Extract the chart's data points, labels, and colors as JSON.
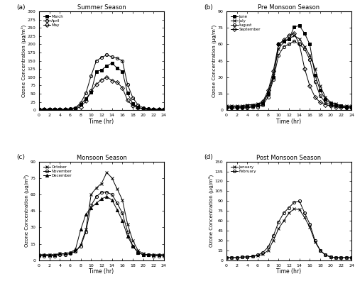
{
  "subplot_a": {
    "title": "Summer Season",
    "label": "(a)",
    "ylim": [
      0,
      300
    ],
    "yticks": [
      0,
      25,
      50,
      75,
      100,
      125,
      150,
      175,
      200,
      225,
      250,
      275,
      300
    ],
    "ylabel": "Ozone Concentration (µg/m³)",
    "xlabel": "Time (hr)",
    "series": {
      "March": {
        "marker": "s",
        "fillstyle": "full",
        "x": [
          0,
          1,
          2,
          3,
          4,
          5,
          6,
          7,
          8,
          9,
          10,
          11,
          12,
          13,
          14,
          15,
          16,
          17,
          18,
          19,
          20,
          21,
          22,
          23,
          24
        ],
        "y": [
          2,
          2,
          2,
          2,
          2,
          2,
          3,
          5,
          18,
          35,
          55,
          118,
          122,
          135,
          143,
          128,
          118,
          52,
          20,
          9,
          5,
          3,
          2,
          2,
          2
        ]
      },
      "April": {
        "marker": "o",
        "fillstyle": "none",
        "x": [
          0,
          1,
          2,
          3,
          4,
          5,
          6,
          7,
          8,
          9,
          10,
          11,
          12,
          13,
          14,
          15,
          16,
          17,
          18,
          19,
          20,
          21,
          22,
          23,
          24
        ],
        "y": [
          3,
          3,
          3,
          3,
          3,
          3,
          5,
          8,
          22,
          52,
          105,
          150,
          160,
          168,
          162,
          158,
          150,
          78,
          38,
          16,
          7,
          5,
          3,
          3,
          3
        ]
      },
      "May": {
        "marker": "D",
        "fillstyle": "none",
        "x": [
          0,
          1,
          2,
          3,
          4,
          5,
          6,
          7,
          8,
          9,
          10,
          11,
          12,
          13,
          14,
          15,
          16,
          17,
          18,
          19,
          20,
          21,
          22,
          23,
          24
        ],
        "y": [
          2,
          2,
          2,
          2,
          2,
          2,
          3,
          5,
          10,
          28,
          58,
          78,
          92,
          100,
          90,
          85,
          68,
          30,
          13,
          7,
          4,
          3,
          2,
          2,
          2
        ]
      }
    }
  },
  "subplot_b": {
    "title": "Pre Monsoon Season",
    "label": "(b)",
    "ylim": [
      0,
      90
    ],
    "yticks": [
      0,
      15,
      30,
      45,
      60,
      75,
      90
    ],
    "ylabel": "Ozone Concentration (µg/m³)",
    "xlabel": "Time (hr)",
    "series": {
      "June": {
        "marker": "s",
        "fillstyle": "full",
        "x": [
          0,
          1,
          2,
          3,
          4,
          5,
          6,
          7,
          8,
          9,
          10,
          11,
          12,
          13,
          14,
          15,
          16,
          17,
          18,
          19,
          20,
          21,
          22,
          23,
          24
        ],
        "y": [
          3,
          3,
          3,
          3,
          4,
          4,
          5,
          6,
          15,
          30,
          60,
          63,
          65,
          76,
          77,
          70,
          60,
          32,
          18,
          10,
          6,
          5,
          4,
          3,
          3
        ]
      },
      "July": {
        "marker": "x",
        "fillstyle": "full",
        "x": [
          0,
          1,
          2,
          3,
          4,
          5,
          6,
          7,
          8,
          9,
          10,
          11,
          12,
          13,
          14,
          15,
          16,
          17,
          18,
          19,
          20,
          21,
          22,
          23,
          24
        ],
        "y": [
          4,
          4,
          4,
          4,
          5,
          5,
          6,
          7,
          16,
          32,
          56,
          62,
          65,
          68,
          65,
          58,
          50,
          38,
          22,
          12,
          7,
          6,
          4,
          4,
          4
        ]
      },
      "August": {
        "marker": "o",
        "fillstyle": "none",
        "x": [
          0,
          1,
          2,
          3,
          4,
          5,
          6,
          7,
          8,
          9,
          10,
          11,
          12,
          13,
          14,
          15,
          16,
          17,
          18,
          19,
          20,
          21,
          22,
          23,
          24
        ],
        "y": [
          2,
          2,
          2,
          2,
          2,
          3,
          3,
          5,
          12,
          28,
          50,
          58,
          60,
          63,
          60,
          56,
          46,
          26,
          13,
          7,
          5,
          4,
          3,
          2,
          2
        ]
      },
      "September": {
        "marker": "D",
        "fillstyle": "none",
        "x": [
          0,
          1,
          2,
          3,
          4,
          5,
          6,
          7,
          8,
          9,
          10,
          11,
          12,
          13,
          14,
          15,
          16,
          17,
          18,
          19,
          20,
          21,
          22,
          23,
          24
        ],
        "y": [
          3,
          3,
          3,
          3,
          3,
          4,
          5,
          8,
          18,
          36,
          60,
          64,
          68,
          70,
          60,
          38,
          22,
          12,
          7,
          5,
          4,
          3,
          3,
          3,
          3
        ]
      }
    }
  },
  "subplot_c": {
    "title": "Monsoon Season",
    "label": "(c)",
    "ylim": [
      0,
      90
    ],
    "yticks": [
      0,
      15,
      30,
      45,
      60,
      75,
      90
    ],
    "ylabel": "Ozone Concentration (µg/m³)",
    "xlabel": "Time (hr)",
    "series": {
      "October": {
        "marker": "x",
        "fillstyle": "full",
        "x": [
          0,
          1,
          2,
          3,
          4,
          5,
          6,
          7,
          8,
          9,
          10,
          11,
          12,
          13,
          14,
          15,
          16,
          17,
          18,
          19,
          20,
          21,
          22,
          23,
          24
        ],
        "y": [
          5,
          5,
          5,
          5,
          6,
          6,
          7,
          8,
          14,
          28,
          60,
          66,
          70,
          80,
          75,
          65,
          55,
          33,
          18,
          9,
          6,
          5,
          5,
          5,
          5
        ]
      },
      "November": {
        "marker": "o",
        "fillstyle": "none",
        "x": [
          0,
          1,
          2,
          3,
          4,
          5,
          6,
          7,
          8,
          9,
          10,
          11,
          12,
          13,
          14,
          15,
          16,
          17,
          18,
          19,
          20,
          21,
          22,
          23,
          24
        ],
        "y": [
          4,
          4,
          4,
          4,
          5,
          5,
          6,
          8,
          13,
          26,
          50,
          58,
          62,
          62,
          60,
          52,
          43,
          26,
          13,
          7,
          5,
          5,
          4,
          4,
          4
        ]
      },
      "December": {
        "marker": "^",
        "fillstyle": "full",
        "x": [
          0,
          1,
          2,
          3,
          4,
          5,
          6,
          7,
          8,
          9,
          10,
          11,
          12,
          13,
          14,
          15,
          16,
          17,
          18,
          19,
          20,
          21,
          22,
          23,
          24
        ],
        "y": [
          5,
          5,
          5,
          5,
          6,
          6,
          7,
          10,
          28,
          42,
          48,
          52,
          56,
          58,
          55,
          46,
          36,
          22,
          13,
          7,
          5,
          5,
          5,
          5,
          5
        ]
      }
    }
  },
  "subplot_d": {
    "title": "Post Monsoon Season",
    "label": "(d)",
    "ylim": [
      0,
      150
    ],
    "yticks": [
      0,
      15,
      30,
      45,
      60,
      75,
      90,
      105,
      120,
      135,
      150
    ],
    "ylabel": "Ozone Concentration (µg/m³)",
    "xlabel": "Time (hr)",
    "series": {
      "January": {
        "marker": "x",
        "fillstyle": "full",
        "x": [
          0,
          1,
          2,
          3,
          4,
          5,
          6,
          7,
          8,
          9,
          10,
          11,
          12,
          13,
          14,
          15,
          16,
          17,
          18,
          19,
          20,
          21,
          22,
          23,
          24
        ],
        "y": [
          4,
          4,
          4,
          5,
          5,
          6,
          7,
          9,
          15,
          30,
          48,
          60,
          72,
          78,
          77,
          65,
          50,
          28,
          15,
          8,
          5,
          4,
          4,
          4,
          4
        ]
      },
      "February": {
        "marker": "o",
        "fillstyle": "none",
        "x": [
          0,
          1,
          2,
          3,
          4,
          5,
          6,
          7,
          8,
          9,
          10,
          11,
          12,
          13,
          14,
          15,
          16,
          17,
          18,
          19,
          20,
          21,
          22,
          23,
          24
        ],
        "y": [
          4,
          4,
          4,
          5,
          5,
          6,
          8,
          12,
          20,
          37,
          58,
          72,
          80,
          88,
          90,
          72,
          55,
          30,
          15,
          8,
          5,
          4,
          4,
          4,
          4
        ]
      }
    }
  }
}
